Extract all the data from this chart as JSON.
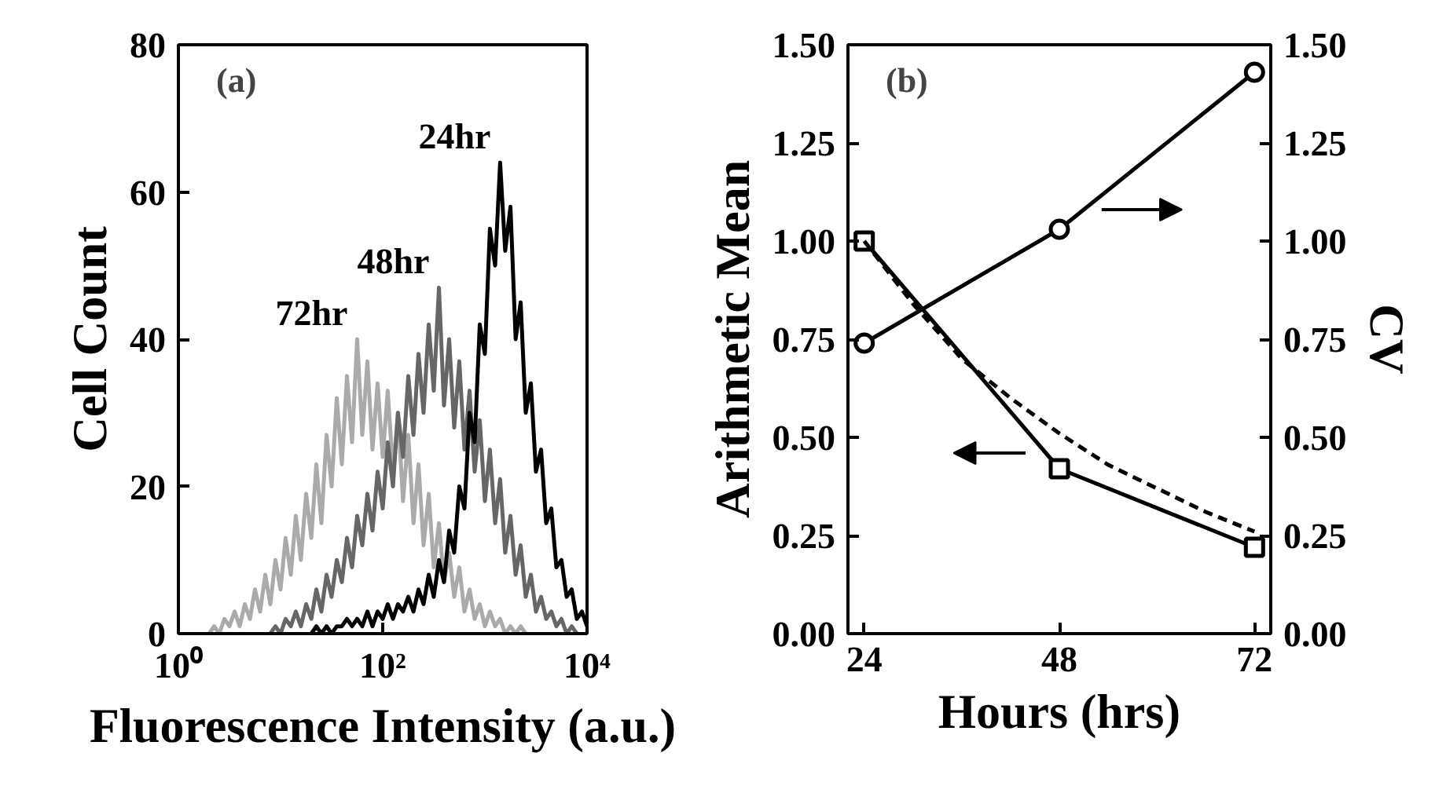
{
  "chart_data": [
    {
      "type": "line",
      "xlabel": "Fluorescence Intensity (a.u.)",
      "ylabel": "Cell Count",
      "log": "x",
      "marker": "none",
      "line_style": "solid",
      "annotations": [
        "(a)"
      ],
      "xlim": [
        1,
        10000
      ],
      "xticks": [
        {
          "value": 1,
          "label": "10⁰"
        },
        {
          "value": 100,
          "label": "10²"
        },
        {
          "value": 10000,
          "label": "10⁴"
        }
      ],
      "ylim": [
        0,
        80
      ],
      "yticks": [
        0,
        20,
        40,
        60,
        80
      ],
      "x": [
        2,
        2.24,
        2.51,
        2.82,
        3.16,
        3.55,
        3.98,
        4.47,
        5.01,
        5.62,
        6.31,
        7.08,
        7.94,
        8.91,
        10,
        11.2,
        12.6,
        14.1,
        15.8,
        17.8,
        20,
        22.4,
        25.1,
        28.2,
        31.6,
        35.5,
        39.8,
        44.7,
        50.1,
        56.2,
        63.1,
        70.8,
        79.4,
        89.1,
        100,
        112,
        126,
        141,
        158,
        178,
        200,
        224,
        251,
        282,
        316,
        355,
        398,
        447,
        501,
        562,
        631,
        708,
        794,
        891,
        1000,
        1120,
        1260,
        1410,
        1580,
        1780,
        2000,
        2240,
        2510,
        2820,
        3160,
        3550,
        3980,
        4470,
        5010,
        5620,
        6310,
        7080,
        7940,
        8910,
        10000
      ],
      "series": [
        {
          "name": "72hr",
          "color": "#aaaaaa",
          "values": [
            0,
            1,
            0,
            2,
            1,
            3,
            1,
            4,
            2,
            6,
            3,
            8,
            4,
            10,
            6,
            13,
            8,
            16,
            10,
            19,
            13,
            23,
            15,
            27,
            20,
            32,
            23,
            35,
            26,
            40,
            27,
            37,
            25,
            34,
            24,
            33,
            22,
            30,
            18,
            27,
            15,
            23,
            12,
            19,
            9,
            15,
            7,
            11,
            5,
            9,
            3,
            6,
            2,
            4,
            1,
            3,
            1,
            2,
            0,
            1,
            0,
            1,
            0,
            null,
            null,
            null,
            null,
            null,
            null,
            null,
            null,
            null,
            null,
            null,
            null
          ]
        },
        {
          "name": "48hr",
          "color": "#666666",
          "values": [
            null,
            null,
            null,
            null,
            null,
            null,
            null,
            null,
            null,
            null,
            null,
            null,
            0,
            1,
            0,
            2,
            1,
            3,
            1,
            4,
            2,
            6,
            3,
            8,
            5,
            10,
            7,
            13,
            9,
            16,
            12,
            19,
            14,
            22,
            17,
            26,
            20,
            30,
            24,
            35,
            27,
            38,
            30,
            42,
            33,
            47,
            31,
            40,
            28,
            37,
            25,
            33,
            22,
            29,
            18,
            25,
            15,
            21,
            11,
            16,
            8,
            12,
            5,
            8,
            3,
            5,
            2,
            3,
            1,
            2,
            0,
            1,
            0,
            null,
            null
          ]
        },
        {
          "name": "24hr",
          "color": "#000000",
          "values": [
            null,
            null,
            null,
            null,
            null,
            null,
            null,
            null,
            null,
            null,
            null,
            null,
            null,
            null,
            null,
            null,
            null,
            null,
            null,
            null,
            0,
            1,
            0,
            1,
            0,
            1,
            1,
            2,
            1,
            2,
            1,
            3,
            1,
            3,
            2,
            4,
            2,
            4,
            3,
            5,
            3,
            6,
            4,
            8,
            5,
            10,
            7,
            14,
            11,
            20,
            17,
            30,
            26,
            42,
            38,
            55,
            50,
            64,
            52,
            58,
            40,
            45,
            30,
            34,
            22,
            25,
            15,
            17,
            9,
            10,
            5,
            6,
            2,
            3,
            1
          ]
        }
      ]
    },
    {
      "type": "line",
      "xlabel": "Hours (hrs)",
      "ylabel": "Arithmetic Mean",
      "y2label": "CV",
      "annotations": [
        "(b)"
      ],
      "xlim": [
        22,
        74
      ],
      "xticks": [
        24,
        48,
        72
      ],
      "ylim": [
        0,
        1.5
      ],
      "yticks": [
        {
          "value": 0,
          "label": "0.00"
        },
        {
          "value": 0.25,
          "label": "0.25"
        },
        {
          "value": 0.5,
          "label": "0.50"
        },
        {
          "value": 0.75,
          "label": "0.75"
        },
        {
          "value": 1,
          "label": "1.00"
        },
        {
          "value": 1.25,
          "label": "1.25"
        },
        {
          "value": 1.5,
          "label": "1.50"
        }
      ],
      "y2lim": [
        0,
        1.5
      ],
      "y2ticks": [
        {
          "value": 0,
          "label": "0.00"
        },
        {
          "value": 0.25,
          "label": "0.25"
        },
        {
          "value": 0.5,
          "label": "0.50"
        },
        {
          "value": 0.75,
          "label": "0.75"
        },
        {
          "value": 1,
          "label": "1.00"
        },
        {
          "value": 1.25,
          "label": "1.25"
        },
        {
          "value": 1.5,
          "label": "1.50"
        }
      ],
      "series": [
        {
          "color": "#000000",
          "marker": "square",
          "line_style": "solid",
          "x": [
            24,
            48,
            72
          ],
          "values": [
            1.0,
            0.42,
            0.22
          ]
        },
        {
          "color": "#000000",
          "marker": "none",
          "line_style": "dashed",
          "x": [
            24,
            30,
            36,
            42,
            48,
            54,
            60,
            66,
            72
          ],
          "values": [
            1.0,
            0.84,
            0.7,
            0.6,
            0.51,
            0.43,
            0.37,
            0.31,
            0.26
          ]
        },
        {
          "color": "#000000",
          "marker": "circle",
          "line_style": "solid",
          "axis": "y2",
          "x": [
            24,
            48,
            72
          ],
          "values": [
            0.74,
            1.03,
            1.43
          ]
        }
      ]
    }
  ]
}
